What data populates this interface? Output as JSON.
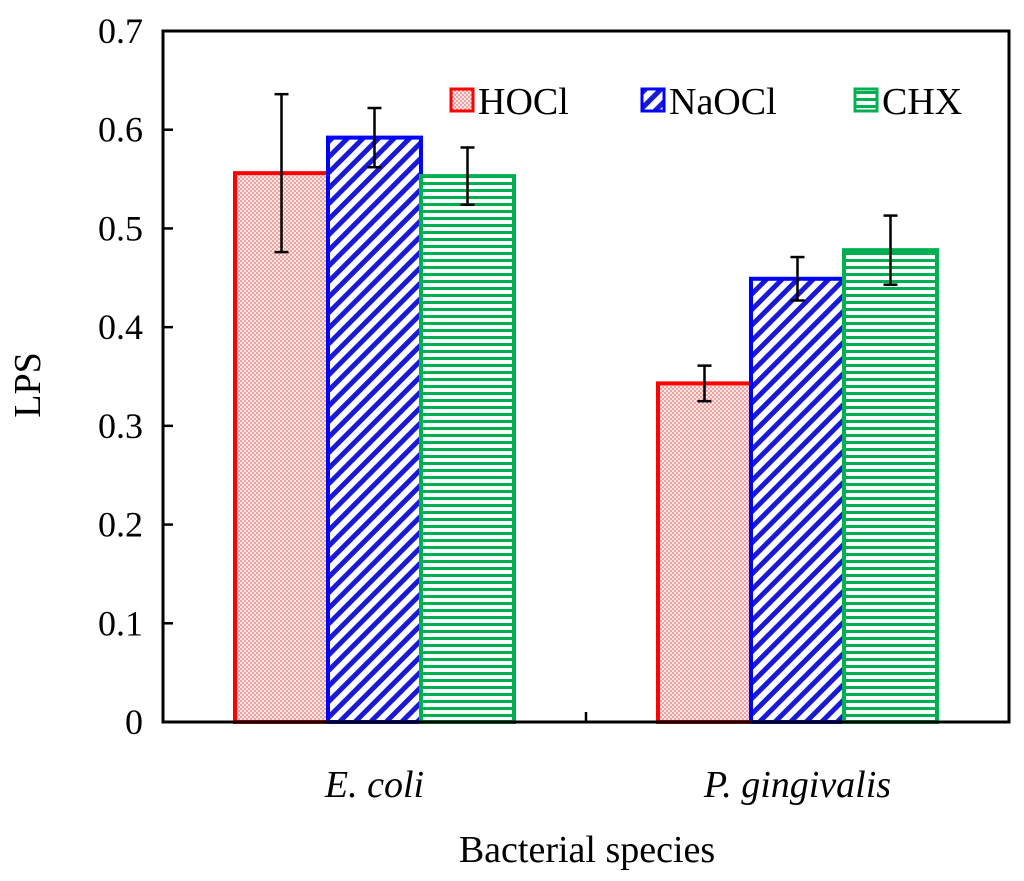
{
  "chart_data": {
    "type": "bar",
    "title": "",
    "xlabel": "Bacterial species",
    "ylabel": "LPS",
    "ylim": [
      0,
      0.7
    ],
    "yticks": [
      "0",
      "0.1",
      "0.2",
      "0.3",
      "0.4",
      "0.5",
      "0.6",
      "0.7"
    ],
    "categories": [
      "E. coli",
      "P. gingivalis"
    ],
    "series": [
      {
        "name": "HOCl",
        "values": [
          0.556,
          0.343
        ],
        "errors": [
          0.08,
          0.018
        ],
        "color": "#ff0000",
        "pattern": "dots"
      },
      {
        "name": "NaOCl",
        "values": [
          0.592,
          0.449
        ],
        "errors": [
          0.03,
          0.022
        ],
        "color": "#0000ff",
        "pattern": "diagonal"
      },
      {
        "name": "CHX",
        "values": [
          0.553,
          0.478
        ],
        "errors": [
          0.029,
          0.035
        ],
        "color": "#00b050",
        "pattern": "horizontal"
      }
    ],
    "legend_position": "top-right",
    "grid": false
  }
}
